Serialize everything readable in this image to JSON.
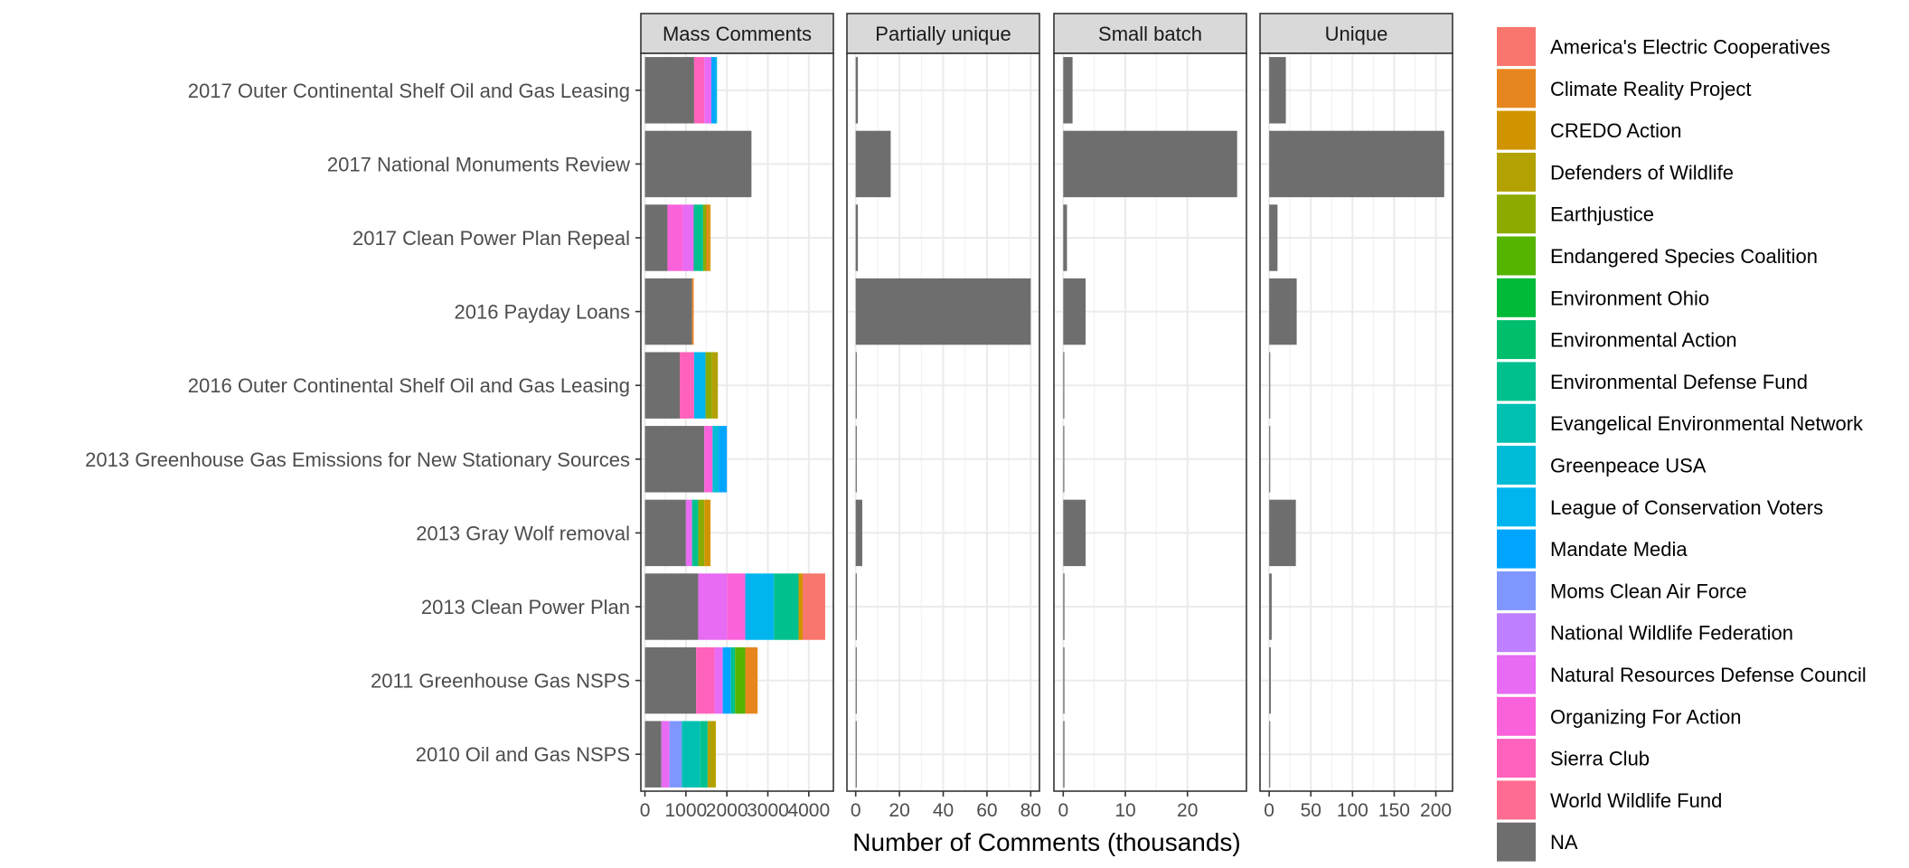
{
  "chart_data": {
    "type": "bar",
    "orientation": "horizontal",
    "stacked": true,
    "faceted": true,
    "xlabel": "Number of Comments (thousands)",
    "legend_placement": "right",
    "grid": true,
    "categories": [
      "2017 Outer Continental Shelf Oil and Gas Leasing",
      "2017 National Monuments Review",
      "2017 Clean Power Plan Repeal",
      "2016 Payday Loans",
      "2016 Outer Continental Shelf Oil and Gas Leasing",
      "2013 Greenhouse Gas Emissions for New Stationary Sources",
      "2013 Gray Wolf removal",
      "2013 Clean Power Plan",
      "2011 Greenhouse Gas NSPS",
      "2010 Oil and Gas NSPS"
    ],
    "legend": [
      {
        "name": "America's Electric Cooperatives",
        "color": "#F8766D"
      },
      {
        "name": "Climate Reality Project",
        "color": "#E7851E"
      },
      {
        "name": "CREDO Action",
        "color": "#D09400"
      },
      {
        "name": "Defenders of Wildlife",
        "color": "#B2A100"
      },
      {
        "name": "Earthjustice",
        "color": "#8BAB00"
      },
      {
        "name": "Endangered Species Coalition",
        "color": "#55B400"
      },
      {
        "name": "Environment Ohio",
        "color": "#00BA38"
      },
      {
        "name": "Environmental Action",
        "color": "#00BE6C"
      },
      {
        "name": "Environmental Defense Fund",
        "color": "#00C08E"
      },
      {
        "name": "Evangelical Environmental Network",
        "color": "#00C0B2"
      },
      {
        "name": "Greenpeace USA",
        "color": "#00BCD6"
      },
      {
        "name": "League of Conservation Voters",
        "color": "#00B5EE"
      },
      {
        "name": "Mandate Media",
        "color": "#00A5FF"
      },
      {
        "name": "Moms Clean Air Force",
        "color": "#7F96FF"
      },
      {
        "name": "National Wildlife Federation",
        "color": "#BF80FF"
      },
      {
        "name": "Natural Resources Defense Council",
        "color": "#E76BF3"
      },
      {
        "name": "Organizing For Action",
        "color": "#FA62DB"
      },
      {
        "name": "Sierra Club",
        "color": "#FF62BC"
      },
      {
        "name": "World Wildlife Fund",
        "color": "#FF6C91"
      },
      {
        "name": "NA",
        "color": "#6E6E6E"
      }
    ],
    "panels": [
      {
        "title": "Mass Comments",
        "xlim": [
          -100,
          4600
        ],
        "ticks": [
          0,
          1000,
          2000,
          3000,
          4000
        ],
        "tick_labels": [
          "0",
          "1000",
          "2000",
          "3000",
          "4000"
        ],
        "bars": [
          [
            {
              "org": "NA",
              "value": 1200
            },
            {
              "org": "Sierra Club",
              "value": 250
            },
            {
              "org": "Natural Resources Defense Council",
              "value": 170
            },
            {
              "org": "Mandate Media",
              "value": 110
            },
            {
              "org": "Greenpeace USA",
              "value": 30
            }
          ],
          [
            {
              "org": "NA",
              "value": 2600
            }
          ],
          [
            {
              "org": "NA",
              "value": 550
            },
            {
              "org": "Organizing For Action",
              "value": 380
            },
            {
              "org": "Natural Resources Defense Council",
              "value": 260
            },
            {
              "org": "Environmental Defense Fund",
              "value": 230
            },
            {
              "org": "Earthjustice",
              "value": 80
            },
            {
              "org": "Climate Reality Project",
              "value": 60
            },
            {
              "org": "CREDO Action",
              "value": 40
            }
          ],
          [
            {
              "org": "NA",
              "value": 1150
            },
            {
              "org": "Climate Reality Project",
              "value": 40
            }
          ],
          [
            {
              "org": "NA",
              "value": 850
            },
            {
              "org": "Sierra Club",
              "value": 350
            },
            {
              "org": "League of Conservation Voters",
              "value": 280
            },
            {
              "org": "Earthjustice",
              "value": 150
            },
            {
              "org": "Defenders of Wildlife",
              "value": 150
            }
          ],
          [
            {
              "org": "NA",
              "value": 1450
            },
            {
              "org": "Organizing For Action",
              "value": 200
            },
            {
              "org": "Greenpeace USA",
              "value": 150
            },
            {
              "org": "Mandate Media",
              "value": 200
            }
          ],
          [
            {
              "org": "NA",
              "value": 1000
            },
            {
              "org": "Natural Resources Defense Council",
              "value": 150
            },
            {
              "org": "Environmental Defense Fund",
              "value": 150
            },
            {
              "org": "Earthjustice",
              "value": 150
            },
            {
              "org": "CREDO Action",
              "value": 150
            }
          ],
          [
            {
              "org": "NA",
              "value": 1300
            },
            {
              "org": "Natural Resources Defense Council",
              "value": 700
            },
            {
              "org": "Organizing For Action",
              "value": 450
            },
            {
              "org": "League of Conservation Voters",
              "value": 700
            },
            {
              "org": "Environmental Defense Fund",
              "value": 600
            },
            {
              "org": "CREDO Action",
              "value": 100
            },
            {
              "org": "America's Electric Cooperatives",
              "value": 550
            }
          ],
          [
            {
              "org": "NA",
              "value": 1250
            },
            {
              "org": "Sierra Club",
              "value": 450
            },
            {
              "org": "Natural Resources Defense Council",
              "value": 200
            },
            {
              "org": "Mandate Media",
              "value": 200
            },
            {
              "org": "Environmental Defense Fund",
              "value": 100
            },
            {
              "org": "Endangered Species Coalition",
              "value": 250
            },
            {
              "org": "Climate Reality Project",
              "value": 300
            }
          ],
          [
            {
              "org": "NA",
              "value": 400
            },
            {
              "org": "Natural Resources Defense Council",
              "value": 200
            },
            {
              "org": "Moms Clean Air Force",
              "value": 300
            },
            {
              "org": "Evangelical Environmental Network",
              "value": 450
            },
            {
              "org": "Environmental Defense Fund",
              "value": 180
            },
            {
              "org": "Defenders of Wildlife",
              "value": 200
            }
          ]
        ]
      },
      {
        "title": "Partially unique",
        "xlim": [
          -4,
          84
        ],
        "ticks": [
          0,
          20,
          40,
          60,
          80
        ],
        "tick_labels": [
          "0",
          "20",
          "40",
          "60",
          "80"
        ],
        "bars": [
          [
            {
              "org": "NA",
              "value": 1
            }
          ],
          [
            {
              "org": "NA",
              "value": 16
            }
          ],
          [
            {
              "org": "NA",
              "value": 1
            }
          ],
          [
            {
              "org": "NA",
              "value": 80
            }
          ],
          [
            {
              "org": "NA",
              "value": 0.4
            }
          ],
          [
            {
              "org": "NA",
              "value": 0.4
            }
          ],
          [
            {
              "org": "NA",
              "value": 3
            }
          ],
          [
            {
              "org": "NA",
              "value": 0.4
            }
          ],
          [
            {
              "org": "NA",
              "value": 0.4
            }
          ],
          [
            {
              "org": "NA",
              "value": 0.4
            }
          ]
        ]
      },
      {
        "title": "Small batch",
        "xlim": [
          -1.5,
          29.5
        ],
        "ticks": [
          0,
          10,
          20
        ],
        "tick_labels": [
          "0",
          "10",
          "20"
        ],
        "bars": [
          [
            {
              "org": "NA",
              "value": 1.5
            }
          ],
          [
            {
              "org": "NA",
              "value": 28
            }
          ],
          [
            {
              "org": "NA",
              "value": 0.6
            }
          ],
          [
            {
              "org": "NA",
              "value": 3.6
            }
          ],
          [
            {
              "org": "NA",
              "value": 0.15
            }
          ],
          [
            {
              "org": "NA",
              "value": 0.15
            }
          ],
          [
            {
              "org": "NA",
              "value": 3.6
            }
          ],
          [
            {
              "org": "NA",
              "value": 0.2
            }
          ],
          [
            {
              "org": "NA",
              "value": 0.2
            }
          ],
          [
            {
              "org": "NA",
              "value": 0.2
            }
          ]
        ]
      },
      {
        "title": "Unique",
        "xlim": [
          -11,
          220
        ],
        "ticks": [
          0,
          50,
          100,
          150,
          200
        ],
        "tick_labels": [
          "0",
          "50",
          "100",
          "150",
          "200"
        ],
        "bars": [
          [
            {
              "org": "NA",
              "value": 20
            }
          ],
          [
            {
              "org": "NA",
              "value": 210
            }
          ],
          [
            {
              "org": "NA",
              "value": 10
            }
          ],
          [
            {
              "org": "NA",
              "value": 33
            }
          ],
          [
            {
              "org": "NA",
              "value": 0.5
            }
          ],
          [
            {
              "org": "NA",
              "value": 1
            }
          ],
          [
            {
              "org": "NA",
              "value": 32
            }
          ],
          [
            {
              "org": "NA",
              "value": 3
            }
          ],
          [
            {
              "org": "NA",
              "value": 2
            }
          ],
          [
            {
              "org": "NA",
              "value": 1
            }
          ]
        ]
      }
    ]
  }
}
